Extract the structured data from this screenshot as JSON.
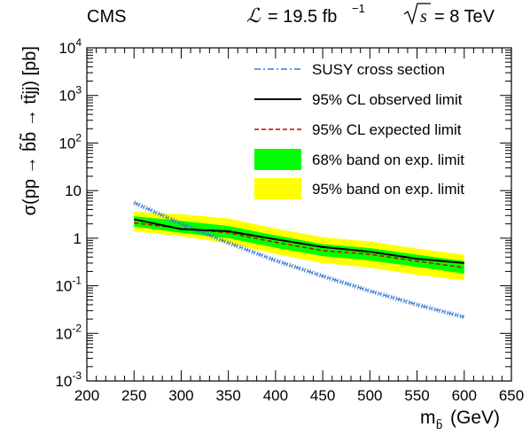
{
  "header": {
    "experiment": "CMS",
    "lumi_symbol": "ℒ",
    "lumi_text": "= 19.5 fb",
    "lumi_exp": "−1",
    "energy_symbol": "s",
    "energy_text": "= 8 TeV"
  },
  "chart_data": {
    "type": "line",
    "xlabel": "m",
    "xlabel_sub": "b̃",
    "xlabel_unit": "(GeV)",
    "ylabel": "σ(pp → b̃b̃ → tt̄jj) [pb]",
    "xlim": [
      200,
      650
    ],
    "ylim": [
      0.001,
      10000
    ],
    "log_y": true,
    "x_ticks": [
      "200",
      "250",
      "300",
      "350",
      "400",
      "450",
      "500",
      "550",
      "600",
      "650"
    ],
    "y_ticks": [
      {
        "base": "10",
        "exp": "-3"
      },
      {
        "base": "10",
        "exp": "-2"
      },
      {
        "base": "10",
        "exp": "-1"
      },
      {
        "base": "1",
        "exp": ""
      },
      {
        "base": "10",
        "exp": ""
      },
      {
        "base": "10",
        "exp": "2"
      },
      {
        "base": "10",
        "exp": "3"
      },
      {
        "base": "10",
        "exp": "4"
      }
    ],
    "legend_position": "top-right",
    "x": [
      250,
      300,
      350,
      400,
      450,
      500,
      550,
      600
    ],
    "series": [
      {
        "name": "SUSY cross section",
        "style": "dash-dot",
        "color": "#3a7bd5",
        "values": [
          5.6,
          2.0,
          0.8,
          0.34,
          0.16,
          0.078,
          0.04,
          0.022
        ]
      },
      {
        "name": "95% CL observed limit",
        "style": "solid",
        "color": "#000000",
        "values": [
          2.5,
          1.55,
          1.4,
          0.95,
          0.65,
          0.52,
          0.37,
          0.3
        ]
      },
      {
        "name": "95% CL expected limit",
        "style": "dashed",
        "color": "#cc0000",
        "values": [
          2.1,
          1.6,
          1.3,
          0.82,
          0.55,
          0.46,
          0.33,
          0.24
        ]
      },
      {
        "name": "68% band on exp. limit",
        "style": "band",
        "color": "#00ff00",
        "low": [
          1.75,
          1.3,
          1.0,
          0.63,
          0.42,
          0.34,
          0.25,
          0.18
        ],
        "high": [
          2.9,
          2.3,
          1.8,
          1.15,
          0.75,
          0.62,
          0.45,
          0.33
        ]
      },
      {
        "name": "95% band on exp. limit",
        "style": "band",
        "color": "#ffff00",
        "low": [
          1.4,
          1.1,
          0.78,
          0.47,
          0.3,
          0.24,
          0.17,
          0.13
        ],
        "high": [
          3.6,
          3.2,
          2.6,
          1.6,
          1.05,
          0.85,
          0.6,
          0.45
        ]
      }
    ]
  }
}
